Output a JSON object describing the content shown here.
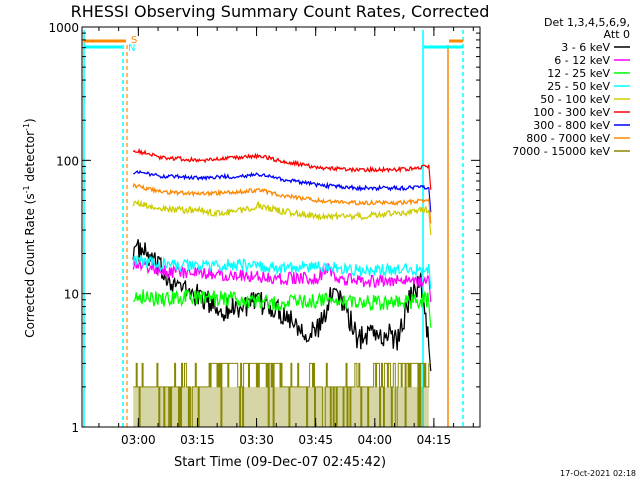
{
  "chart_data": {
    "type": "line",
    "title": "RHESSI Observing Summary Count Rates, Corrected",
    "xlabel": "Start Time (09-Dec-07 02:45:42)",
    "ylabel_main": "Corrected Count Rate (s",
    "ylabel_sup1": "-1",
    "ylabel_mid": " detector",
    "ylabel_sup2": "-1",
    "ylabel_end": ")",
    "x_range_min": [
      0,
      101
    ],
    "y_scale": "log",
    "ylim": [
      1,
      1000
    ],
    "y_ticks": [
      {
        "v": 1,
        "label": "1"
      },
      {
        "v": 10,
        "label": "10"
      },
      {
        "v": 100,
        "label": "100"
      },
      {
        "v": 1000,
        "label": "1000"
      }
    ],
    "x_ticks": [
      {
        "t": 14.3,
        "label": "03:00"
      },
      {
        "t": 29.3,
        "label": "03:15"
      },
      {
        "t": 44.3,
        "label": "03:30"
      },
      {
        "t": 59.3,
        "label": "03:45"
      },
      {
        "t": 74.3,
        "label": "04:00"
      },
      {
        "t": 89.3,
        "label": "04:15"
      }
    ],
    "legend_placement": "right",
    "legend_header": [
      "Det 1,3,4,5,6,9,",
      "Att 0"
    ],
    "series": [
      {
        "name": "3 - 6 keV",
        "color": "#000000",
        "x": [
          13,
          16,
          20,
          25,
          30,
          35,
          40,
          45,
          50,
          53,
          56,
          58,
          60,
          62,
          64,
          66,
          70,
          72,
          74,
          76,
          78,
          80,
          82,
          84,
          86,
          88
        ],
        "y": [
          22,
          20,
          15,
          11,
          9.5,
          7.5,
          8,
          8.5,
          7.5,
          6.5,
          5.5,
          5,
          5.5,
          7,
          12,
          9,
          4.5,
          5,
          5.5,
          4.5,
          5,
          4.5,
          7,
          11,
          12,
          4.5
        ]
      },
      {
        "name": "6 - 12 keV",
        "color": "#ff00ff",
        "x": [
          13,
          20,
          30,
          40,
          50,
          60,
          62,
          64,
          70,
          80,
          88
        ],
        "y": [
          17,
          15,
          14,
          14,
          13,
          13,
          16,
          13,
          12.5,
          12.5,
          12.5
        ]
      },
      {
        "name": "12 - 25 keV",
        "color": "#00ff00",
        "x": [
          13,
          20,
          30,
          40,
          50,
          60,
          70,
          80,
          88
        ],
        "y": [
          10,
          9,
          9.5,
          9,
          8.5,
          9,
          8.5,
          8.5,
          9
        ]
      },
      {
        "name": "25 - 50 keV",
        "color": "#00ffff",
        "x": [
          13,
          20,
          30,
          40,
          50,
          60,
          70,
          80,
          88
        ],
        "y": [
          18,
          16.5,
          16,
          16.5,
          15.5,
          16,
          15,
          15,
          15.5
        ]
      },
      {
        "name": "50 - 100 keV",
        "color": "#cccc00",
        "x": [
          13,
          20,
          30,
          35,
          40,
          45,
          50,
          60,
          70,
          80,
          88
        ],
        "y": [
          48,
          43,
          42,
          40,
          42,
          46,
          42,
          38,
          38,
          40,
          43
        ]
      },
      {
        "name": "100 - 300 keV",
        "color": "#ff0000",
        "x": [
          13,
          20,
          30,
          40,
          45,
          50,
          60,
          70,
          80,
          88
        ],
        "y": [
          120,
          105,
          100,
          105,
          108,
          100,
          88,
          85,
          85,
          90
        ]
      },
      {
        "name": "300 - 800 keV",
        "color": "#0000ff",
        "x": [
          13,
          20,
          30,
          40,
          45,
          50,
          60,
          70,
          80,
          88
        ],
        "y": [
          82,
          76,
          74,
          76,
          78,
          73,
          65,
          62,
          62,
          63
        ]
      },
      {
        "name": "800 - 7000 keV",
        "color": "#ff8800",
        "x": [
          13,
          20,
          30,
          40,
          45,
          50,
          60,
          70,
          80,
          88
        ],
        "y": [
          65,
          58,
          56,
          58,
          60,
          55,
          50,
          48,
          48,
          50
        ]
      },
      {
        "name": "7000 - 15000 keV",
        "color": "#888800",
        "x": [
          13,
          20,
          30,
          34,
          36,
          40,
          42,
          50,
          56,
          60,
          62,
          66,
          70,
          74,
          80,
          84,
          88
        ],
        "y": [
          2,
          2,
          2,
          3,
          2.5,
          2.5,
          3,
          2.5,
          2,
          2,
          2.5,
          2,
          2,
          2.5,
          2.5,
          2.5,
          2.5
        ]
      }
    ],
    "flags": [
      {
        "label": "S",
        "color": "#ff8800"
      },
      {
        "label": "N",
        "color": "#00ffff"
      }
    ],
    "footer_stamp": "17-Oct-2021 02:18"
  }
}
